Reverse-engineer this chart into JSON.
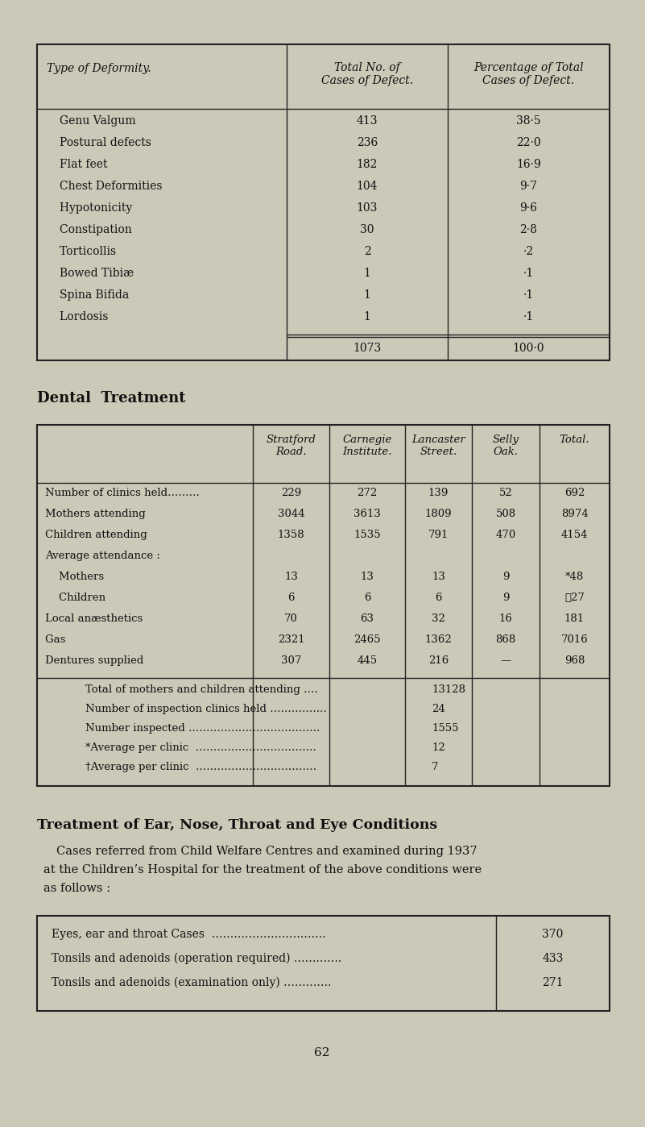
{
  "bg_color": "#ccc9b8",
  "text_color": "#111111",
  "page_number": "62",
  "table1": {
    "title_col1": "Type of Deformity.",
    "title_col2": "Total No. of\nCases of Defect.",
    "title_col3": "Percentage of Total\nCases of Defect.",
    "rows": [
      [
        "Genu Valgum              ",
        "413",
        "38·5"
      ],
      [
        "Postural defects          ",
        "236",
        "22·0"
      ],
      [
        "Flat feet                ",
        "182",
        "16·9"
      ],
      [
        "Chest Deformities        ",
        "104",
        "9·7"
      ],
      [
        "Hypotonicity            ",
        "103",
        "9·6"
      ],
      [
        "Constipation            ",
        "30",
        "2·8"
      ],
      [
        "Torticollis               ",
        "2",
        "·2"
      ],
      [
        "Bowed Tibiæ            ",
        "1",
        "·1"
      ],
      [
        "Spina Bifida            ",
        "1",
        "·1"
      ],
      [
        "Lordosis                ",
        "1",
        "·1"
      ]
    ],
    "total_row": [
      "",
      "1073",
      "100·0"
    ]
  },
  "dental_title": "Dental  Treatment",
  "table2": {
    "col_headers": [
      "",
      "Stratford\nRoad.",
      "Carnegie\nInstitute.",
      "Lancaster\nStreet.",
      "Selly\nOak.",
      "Total."
    ],
    "rows": [
      [
        "Number of clinics held………",
        "229",
        "272",
        "139",
        "52",
        "692"
      ],
      [
        "Mothers attending          ",
        "3044",
        "3613",
        "1809",
        "508",
        "8974"
      ],
      [
        "Children attending         ",
        "1358",
        "1535",
        "791",
        "470",
        "4154"
      ],
      [
        "Average attendance :",
        "",
        "",
        "",
        "",
        ""
      ],
      [
        "    Mothers              ",
        "13",
        "13",
        "13",
        "9",
        "*48"
      ],
      [
        "    Children             ",
        "6",
        "6",
        "6",
        "9",
        "‧27"
      ],
      [
        "Local anæsthetics        ",
        "70",
        "63",
        "32",
        "16",
        "181"
      ],
      [
        "Gas                    ",
        "2321",
        "2465",
        "1362",
        "868",
        "7016"
      ],
      [
        "Dentures supplied        ",
        "307",
        "445",
        "216",
        "—",
        "968"
      ]
    ],
    "footer": [
      [
        "Total of mothers and children attending ….",
        "13128"
      ],
      [
        "Number of inspection clinics held …………….",
        "24"
      ],
      [
        "Number inspected ……………………………….",
        "1555"
      ],
      [
        "*Average per clinic  …………………………….",
        "12"
      ],
      [
        "†Average per clinic  …………………………….",
        "7"
      ]
    ]
  },
  "ent_title": "Treatment of Ear, Nose, Throat and Eye Conditions",
  "ent_para1": "Cases referred from Child Welfare Centres and examined during 1937",
  "ent_para2": "at the Children’s Hospital for the treatment of the above conditions were",
  "ent_para3": "as follows :",
  "table3": {
    "rows": [
      [
        "Eyes, ear and throat Cases  ………………………….",
        "370"
      ],
      [
        "Tonsils and adenoids (operation required) ………….",
        "433"
      ],
      [
        "Tonsils and adenoids (examination only) ………….",
        "271"
      ]
    ]
  }
}
